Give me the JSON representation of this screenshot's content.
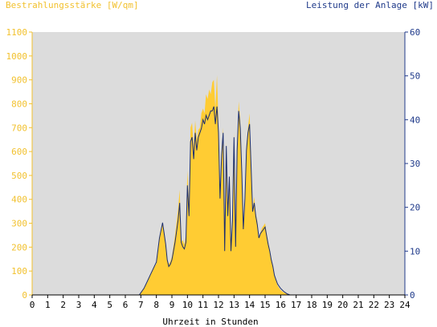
{
  "chart_data": {
    "type": "area",
    "title_left": "Bestrahlungsstärke [W/qm]",
    "title_right": "Leistung der Anlage [kW]",
    "xlabel": "Uhrzeit in Stunden",
    "xlim": [
      0,
      24
    ],
    "ylim_left": [
      0,
      1100
    ],
    "ylim_right": [
      0,
      60
    ],
    "grid": false,
    "x_ticks": [
      "0",
      "1",
      "2",
      "3",
      "4",
      "5",
      "6",
      "7",
      "8",
      "9",
      "10",
      "11",
      "12",
      "13",
      "14",
      "15",
      "16",
      "17",
      "18",
      "19",
      "20",
      "21",
      "22",
      "23",
      "24"
    ],
    "y_left_ticks": [
      "0",
      "100",
      "200",
      "300",
      "400",
      "500",
      "600",
      "700",
      "800",
      "900",
      "1000",
      "1100"
    ],
    "y_right_ticks": [
      "0",
      "10",
      "20",
      "30",
      "40",
      "50",
      "60"
    ],
    "colors": {
      "irradiance_fill": "#ffcc33",
      "power_line": "#1a2d6e",
      "plot_bg": "#dcdcdc",
      "left_axis": "#f2c12e",
      "right_axis": "#1f3a8a"
    },
    "series": [
      {
        "axis": "left",
        "style": "area",
        "x": [
          0,
          6.9,
          7.0,
          7.2,
          7.4,
          7.6,
          7.8,
          8.0,
          8.2,
          8.4,
          8.6,
          8.7,
          8.8,
          8.9,
          9.0,
          9.2,
          9.4,
          9.5,
          9.6,
          9.7,
          9.8,
          9.9,
          10.0,
          10.1,
          10.2,
          10.3,
          10.4,
          10.5,
          10.6,
          10.7,
          10.8,
          10.9,
          11.0,
          11.1,
          11.2,
          11.3,
          11.4,
          11.5,
          11.6,
          11.7,
          11.8,
          11.9,
          12.0,
          12.1,
          12.2,
          12.3,
          12.4,
          12.5,
          12.6,
          12.7,
          12.8,
          12.9,
          13.0,
          13.1,
          13.2,
          13.3,
          13.4,
          13.5,
          13.6,
          13.7,
          13.8,
          13.9,
          14.0,
          14.1,
          14.2,
          14.3,
          14.4,
          14.5,
          14.6,
          14.7,
          14.8,
          14.9,
          15.0,
          15.1,
          15.2,
          15.3,
          15.4,
          15.5,
          15.6,
          15.7,
          15.8,
          15.9,
          16.0,
          16.2,
          16.4,
          16.6,
          16.8,
          17.0,
          17.2,
          17.4,
          17.6,
          17.8,
          18.0,
          18.2,
          18.4,
          24
        ],
        "values": [
          0,
          0,
          10,
          30,
          50,
          80,
          110,
          130,
          240,
          300,
          210,
          150,
          130,
          140,
          160,
          250,
          360,
          440,
          220,
          230,
          210,
          250,
          520,
          380,
          700,
          720,
          620,
          730,
          650,
          690,
          700,
          760,
          780,
          760,
          840,
          820,
          860,
          840,
          890,
          900,
          780,
          920,
          720,
          400,
          600,
          700,
          200,
          640,
          350,
          480,
          200,
          310,
          680,
          200,
          610,
          810,
          730,
          520,
          280,
          400,
          630,
          700,
          760,
          550,
          360,
          410,
          340,
          310,
          240,
          260,
          280,
          290,
          300,
          260,
          220,
          190,
          150,
          120,
          80,
          60,
          40,
          30,
          20,
          10,
          5,
          0,
          0,
          0,
          0,
          0,
          0,
          0,
          0,
          0,
          0,
          0
        ]
      },
      {
        "axis": "right",
        "style": "line",
        "x": [
          0,
          6.9,
          7.0,
          7.2,
          7.4,
          7.6,
          7.8,
          8.0,
          8.2,
          8.4,
          8.6,
          8.7,
          8.8,
          8.9,
          9.0,
          9.2,
          9.4,
          9.5,
          9.6,
          9.7,
          9.8,
          9.9,
          10.0,
          10.1,
          10.2,
          10.3,
          10.4,
          10.5,
          10.6,
          10.7,
          10.8,
          10.9,
          11.0,
          11.1,
          11.2,
          11.3,
          11.4,
          11.5,
          11.6,
          11.7,
          11.8,
          11.9,
          12.0,
          12.1,
          12.2,
          12.3,
          12.4,
          12.5,
          12.6,
          12.7,
          12.8,
          12.9,
          13.0,
          13.1,
          13.2,
          13.3,
          13.4,
          13.5,
          13.6,
          13.7,
          13.8,
          13.9,
          14.0,
          14.1,
          14.2,
          14.3,
          14.4,
          14.5,
          14.6,
          14.7,
          14.8,
          14.9,
          15.0,
          15.1,
          15.2,
          15.3,
          15.4,
          15.5,
          15.6,
          15.7,
          15.8,
          15.9,
          16.0,
          16.2,
          16.4,
          16.6,
          16.8,
          17.0,
          17.2,
          17.4,
          17.6,
          17.8,
          18.0,
          18.2,
          18.4,
          24
        ],
        "values": [
          0,
          0,
          0.5,
          1.5,
          3,
          4.5,
          6,
          7.5,
          13,
          16.5,
          11.5,
          8,
          6.5,
          7,
          8,
          12,
          17,
          21,
          12,
          11,
          10.5,
          12,
          25,
          18,
          35,
          36,
          31,
          37,
          33,
          36,
          37,
          38,
          40,
          39,
          41,
          40,
          41,
          42,
          42,
          43,
          39,
          43,
          37,
          22,
          32,
          37,
          10,
          34,
          18,
          27,
          10,
          17,
          36,
          11,
          33,
          42,
          38,
          28,
          15,
          22,
          33,
          37,
          39,
          29,
          19,
          21,
          18,
          16,
          13,
          14,
          14.5,
          15,
          15.5,
          13.5,
          11.5,
          10,
          8,
          6.5,
          4.5,
          3.5,
          2.5,
          2,
          1.5,
          0.8,
          0.3,
          0,
          0,
          0,
          0,
          0,
          0,
          0,
          0,
          0,
          0,
          0
        ]
      }
    ]
  }
}
